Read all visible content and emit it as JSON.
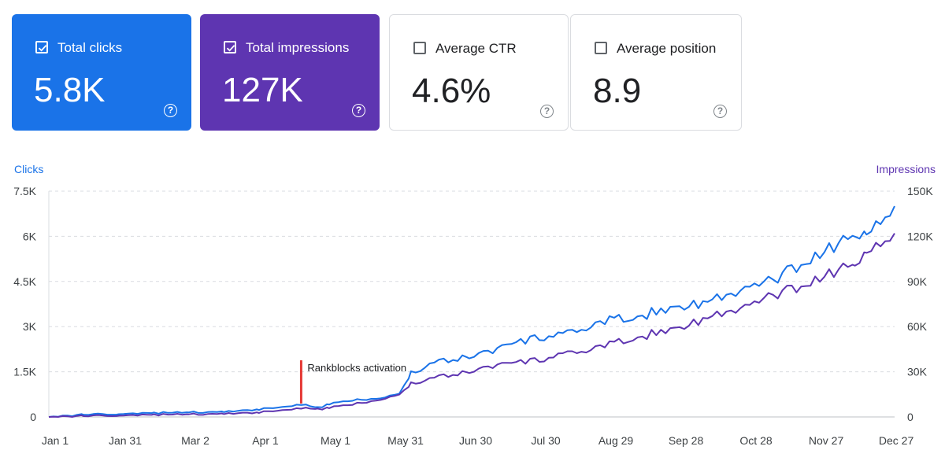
{
  "cards": [
    {
      "label": "Total clicks",
      "value": "5.8K",
      "checked": true,
      "color": "#1a73e8"
    },
    {
      "label": "Total impressions",
      "value": "127K",
      "checked": true,
      "color": "#5e35b1"
    },
    {
      "label": "Average CTR",
      "value": "4.6%",
      "checked": false,
      "color": "#ffffff"
    },
    {
      "label": "Average position",
      "value": "8.9",
      "checked": false,
      "color": "#ffffff"
    }
  ],
  "chart_data": {
    "type": "line",
    "left_axis_label": "Clicks",
    "right_axis_label": "Impressions",
    "left_ticks": [
      "0",
      "1.5K",
      "3K",
      "4.5K",
      "6K",
      "7.5K"
    ],
    "right_ticks": [
      "0",
      "30K",
      "60K",
      "90K",
      "120K",
      "150K"
    ],
    "left_ylim": [
      0,
      7500
    ],
    "right_ylim": [
      0,
      150000
    ],
    "x_labels": [
      "Jan 1",
      "Jan 31",
      "Mar 2",
      "Apr 1",
      "May 1",
      "May 31",
      "Jun 30",
      "Jul 30",
      "Aug 29",
      "Sep 28",
      "Oct 28",
      "Nov 27",
      "Dec 27"
    ],
    "x_label_days": [
      0,
      30,
      60,
      90,
      120,
      150,
      180,
      210,
      240,
      270,
      300,
      330,
      360
    ],
    "annotation": {
      "text": "Rankblocks activation",
      "day": 108,
      "color": "#e53935"
    },
    "grid": true,
    "series": [
      {
        "name": "Clicks",
        "axis": "left",
        "color": "#1a73e8",
        "days": [
          0,
          15,
          30,
          45,
          60,
          75,
          90,
          100,
          108,
          115,
          120,
          130,
          140,
          150,
          155,
          165,
          180,
          190,
          200,
          210,
          220,
          230,
          240,
          250,
          260,
          270,
          280,
          290,
          300,
          310,
          320,
          330,
          340,
          345,
          350,
          362
        ],
        "values": [
          0,
          80,
          100,
          130,
          150,
          170,
          250,
          330,
          420,
          300,
          420,
          560,
          610,
          780,
          1450,
          1800,
          2000,
          2220,
          2450,
          2650,
          2700,
          2950,
          3200,
          3300,
          3500,
          3700,
          3800,
          4000,
          4300,
          4500,
          5000,
          5400,
          5900,
          6200,
          6000,
          7000
        ]
      },
      {
        "name": "Impressions",
        "axis": "right",
        "color": "#5e35b1",
        "days": [
          0,
          15,
          30,
          45,
          60,
          75,
          90,
          100,
          108,
          115,
          120,
          130,
          140,
          150,
          155,
          165,
          180,
          190,
          200,
          210,
          220,
          230,
          240,
          250,
          260,
          270,
          280,
          290,
          300,
          310,
          320,
          330,
          340,
          345,
          350,
          362
        ],
        "values": [
          0,
          700,
          1000,
          1400,
          1700,
          2100,
          3000,
          4500,
          6000,
          5000,
          6000,
          8500,
          11000,
          15000,
          22000,
          26000,
          30000,
          34000,
          36000,
          38000,
          41000,
          44000,
          48000,
          52000,
          56000,
          60000,
          65000,
          69000,
          74000,
          80000,
          86000,
          92000,
          100000,
          104000,
          108000,
          122000
        ]
      }
    ]
  }
}
